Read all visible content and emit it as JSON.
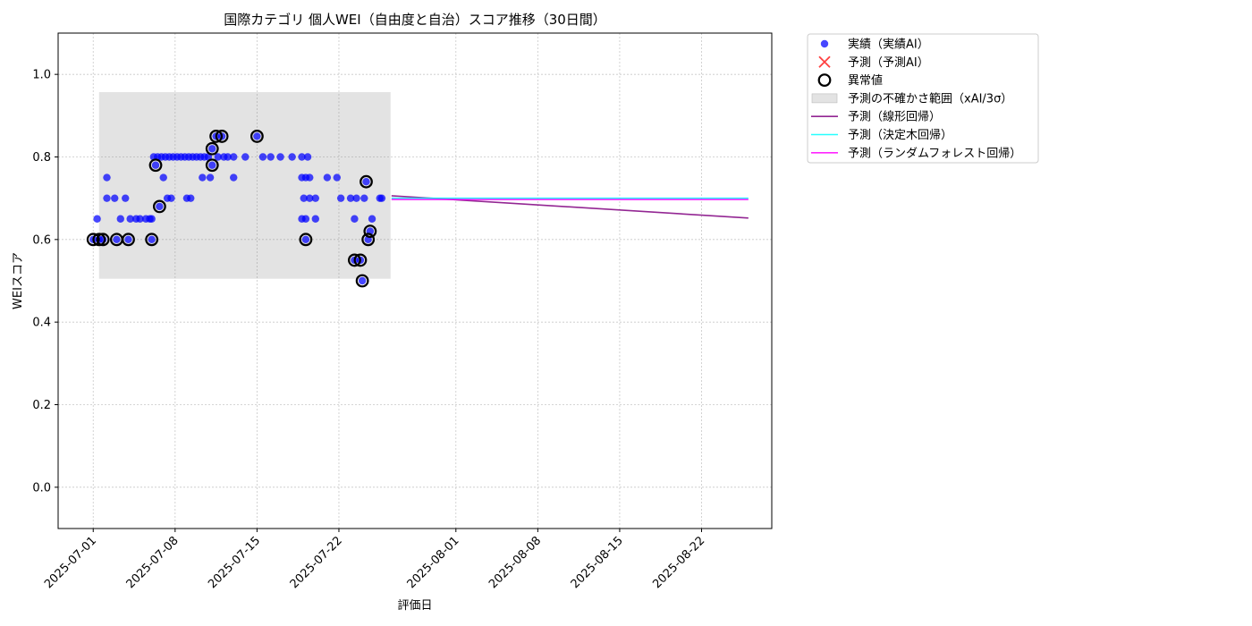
{
  "chart_data": {
    "type": "scatter",
    "title": "国際カテゴリ 個人WEI（自由度と自治）スコア推移（30日間）",
    "xlabel": "評価日",
    "ylabel": "WEIスコア",
    "xlim": [
      "2025-06-28",
      "2025-08-28"
    ],
    "ylim": [
      -0.1,
      1.1
    ],
    "x_ticks": [
      "2025-07-01",
      "2025-07-08",
      "2025-07-15",
      "2025-07-22",
      "2025-08-01",
      "2025-08-08",
      "2025-08-15",
      "2025-08-22"
    ],
    "y_ticks": [
      0.0,
      0.2,
      0.4,
      0.6,
      0.8,
      1.0
    ],
    "y_tick_labels": [
      "0.0",
      "0.2",
      "0.4",
      "0.6",
      "0.8",
      "1.0"
    ],
    "grid": true,
    "legend_position": "outside-top-right",
    "legend": [
      {
        "label": "実績（実績AI）",
        "kind": "dot",
        "color": "#0000ff"
      },
      {
        "label": "予測（予測AI）",
        "kind": "x",
        "color": "#ff0000"
      },
      {
        "label": "異常値",
        "kind": "ring",
        "color": "#000000"
      },
      {
        "label": "予測の不確かさ範囲（xAI/3σ）",
        "kind": "band",
        "color": "#d9d9d9"
      },
      {
        "label": "予測（線形回帰）",
        "kind": "line",
        "color": "#800080"
      },
      {
        "label": "予測（決定木回帰）",
        "kind": "line",
        "color": "#00ffff"
      },
      {
        "label": "予測（ランダムフォレスト回帰）",
        "kind": "line",
        "color": "#ff00ff"
      }
    ],
    "uncertainty_band": {
      "x_start": "2025-07-01T12:00",
      "x_end": "2025-07-26T10:00",
      "y_low": 0.505,
      "y_high": 0.957
    },
    "actual": [
      {
        "x": "2025-07-01T00:00",
        "y": 0.6
      },
      {
        "x": "2025-07-01T08:00",
        "y": 0.65
      },
      {
        "x": "2025-07-01T12:00",
        "y": 0.6
      },
      {
        "x": "2025-07-01T20:00",
        "y": 0.6
      },
      {
        "x": "2025-07-02T04:00",
        "y": 0.75
      },
      {
        "x": "2025-07-02T04:00",
        "y": 0.7
      },
      {
        "x": "2025-07-02T20:00",
        "y": 0.7
      },
      {
        "x": "2025-07-03T00:00",
        "y": 0.6
      },
      {
        "x": "2025-07-03T08:00",
        "y": 0.65
      },
      {
        "x": "2025-07-03T18:00",
        "y": 0.7
      },
      {
        "x": "2025-07-04T00:00",
        "y": 0.6
      },
      {
        "x": "2025-07-04T04:00",
        "y": 0.65
      },
      {
        "x": "2025-07-04T16:00",
        "y": 0.65
      },
      {
        "x": "2025-07-05T00:00",
        "y": 0.65
      },
      {
        "x": "2025-07-05T12:00",
        "y": 0.65
      },
      {
        "x": "2025-07-05T20:00",
        "y": 0.65
      },
      {
        "x": "2025-07-06T00:00",
        "y": 0.6
      },
      {
        "x": "2025-07-06T00:00",
        "y": 0.65
      },
      {
        "x": "2025-07-06T04:00",
        "y": 0.8
      },
      {
        "x": "2025-07-06T08:00",
        "y": 0.78
      },
      {
        "x": "2025-07-06T12:00",
        "y": 0.8
      },
      {
        "x": "2025-07-06T16:00",
        "y": 0.68
      },
      {
        "x": "2025-07-06T20:00",
        "y": 0.8
      },
      {
        "x": "2025-07-07T00:00",
        "y": 0.75
      },
      {
        "x": "2025-07-07T04:00",
        "y": 0.8
      },
      {
        "x": "2025-07-07T08:00",
        "y": 0.7
      },
      {
        "x": "2025-07-07T12:00",
        "y": 0.8
      },
      {
        "x": "2025-07-07T16:00",
        "y": 0.7
      },
      {
        "x": "2025-07-07T20:00",
        "y": 0.8
      },
      {
        "x": "2025-07-08T04:00",
        "y": 0.8
      },
      {
        "x": "2025-07-08T12:00",
        "y": 0.8
      },
      {
        "x": "2025-07-08T20:00",
        "y": 0.8
      },
      {
        "x": "2025-07-09T00:00",
        "y": 0.7
      },
      {
        "x": "2025-07-09T04:00",
        "y": 0.8
      },
      {
        "x": "2025-07-09T08:00",
        "y": 0.7
      },
      {
        "x": "2025-07-09T12:00",
        "y": 0.8
      },
      {
        "x": "2025-07-09T20:00",
        "y": 0.8
      },
      {
        "x": "2025-07-10T04:00",
        "y": 0.8
      },
      {
        "x": "2025-07-10T08:00",
        "y": 0.75
      },
      {
        "x": "2025-07-10T12:00",
        "y": 0.8
      },
      {
        "x": "2025-07-10T20:00",
        "y": 0.8
      },
      {
        "x": "2025-07-11T00:00",
        "y": 0.75
      },
      {
        "x": "2025-07-11T04:00",
        "y": 0.78
      },
      {
        "x": "2025-07-11T04:00",
        "y": 0.82
      },
      {
        "x": "2025-07-11T12:00",
        "y": 0.85
      },
      {
        "x": "2025-07-11T16:00",
        "y": 0.8
      },
      {
        "x": "2025-07-12T00:00",
        "y": 0.85
      },
      {
        "x": "2025-07-12T04:00",
        "y": 0.8
      },
      {
        "x": "2025-07-12T12:00",
        "y": 0.8
      },
      {
        "x": "2025-07-13T00:00",
        "y": 0.8
      },
      {
        "x": "2025-07-13T00:00",
        "y": 0.75
      },
      {
        "x": "2025-07-14T00:00",
        "y": 0.8
      },
      {
        "x": "2025-07-15T00:00",
        "y": 0.85
      },
      {
        "x": "2025-07-15T12:00",
        "y": 0.8
      },
      {
        "x": "2025-07-16T04:00",
        "y": 0.8
      },
      {
        "x": "2025-07-17T00:00",
        "y": 0.8
      },
      {
        "x": "2025-07-18T00:00",
        "y": 0.8
      },
      {
        "x": "2025-07-18T20:00",
        "y": 0.8
      },
      {
        "x": "2025-07-18T20:00",
        "y": 0.75
      },
      {
        "x": "2025-07-18T20:00",
        "y": 0.65
      },
      {
        "x": "2025-07-19T00:00",
        "y": 0.7
      },
      {
        "x": "2025-07-19T04:00",
        "y": 0.6
      },
      {
        "x": "2025-07-19T04:00",
        "y": 0.65
      },
      {
        "x": "2025-07-19T04:00",
        "y": 0.75
      },
      {
        "x": "2025-07-19T08:00",
        "y": 0.8
      },
      {
        "x": "2025-07-19T12:00",
        "y": 0.7
      },
      {
        "x": "2025-07-19T12:00",
        "y": 0.75
      },
      {
        "x": "2025-07-20T00:00",
        "y": 0.7
      },
      {
        "x": "2025-07-20T00:00",
        "y": 0.65
      },
      {
        "x": "2025-07-21T00:00",
        "y": 0.75
      },
      {
        "x": "2025-07-21T20:00",
        "y": 0.75
      },
      {
        "x": "2025-07-22T04:00",
        "y": 0.7
      },
      {
        "x": "2025-07-23T00:00",
        "y": 0.7
      },
      {
        "x": "2025-07-23T08:00",
        "y": 0.55
      },
      {
        "x": "2025-07-23T08:00",
        "y": 0.65
      },
      {
        "x": "2025-07-23T12:00",
        "y": 0.7
      },
      {
        "x": "2025-07-23T20:00",
        "y": 0.55
      },
      {
        "x": "2025-07-24T00:00",
        "y": 0.5
      },
      {
        "x": "2025-07-24T04:00",
        "y": 0.7
      },
      {
        "x": "2025-07-24T08:00",
        "y": 0.74
      },
      {
        "x": "2025-07-24T12:00",
        "y": 0.6
      },
      {
        "x": "2025-07-24T16:00",
        "y": 0.62
      },
      {
        "x": "2025-07-24T20:00",
        "y": 0.65
      },
      {
        "x": "2025-07-25T12:00",
        "y": 0.7
      },
      {
        "x": "2025-07-25T16:00",
        "y": 0.7
      }
    ],
    "anomalies": [
      {
        "x": "2025-07-01T00:00",
        "y": 0.6
      },
      {
        "x": "2025-07-01T12:00",
        "y": 0.6
      },
      {
        "x": "2025-07-01T20:00",
        "y": 0.6
      },
      {
        "x": "2025-07-03T00:00",
        "y": 0.6
      },
      {
        "x": "2025-07-04T00:00",
        "y": 0.6
      },
      {
        "x": "2025-07-06T00:00",
        "y": 0.6
      },
      {
        "x": "2025-07-06T08:00",
        "y": 0.78
      },
      {
        "x": "2025-07-06T16:00",
        "y": 0.68
      },
      {
        "x": "2025-07-11T04:00",
        "y": 0.78
      },
      {
        "x": "2025-07-11T04:00",
        "y": 0.82
      },
      {
        "x": "2025-07-11T12:00",
        "y": 0.85
      },
      {
        "x": "2025-07-12T00:00",
        "y": 0.85
      },
      {
        "x": "2025-07-15T00:00",
        "y": 0.85
      },
      {
        "x": "2025-07-19T04:00",
        "y": 0.6
      },
      {
        "x": "2025-07-23T08:00",
        "y": 0.55
      },
      {
        "x": "2025-07-23T20:00",
        "y": 0.55
      },
      {
        "x": "2025-07-24T00:00",
        "y": 0.5
      },
      {
        "x": "2025-07-24T08:00",
        "y": 0.74
      },
      {
        "x": "2025-07-24T12:00",
        "y": 0.6
      },
      {
        "x": "2025-07-24T16:00",
        "y": 0.62
      }
    ],
    "forecast_lines": [
      {
        "name": "予測（線形回帰）",
        "color": "#800080",
        "points": [
          {
            "x": "2025-07-26T12:00",
            "y": 0.706
          },
          {
            "x": "2025-08-26T00:00",
            "y": 0.652
          }
        ]
      },
      {
        "name": "予測（決定木回帰）",
        "color": "#00ffff",
        "points": [
          {
            "x": "2025-07-26T12:00",
            "y": 0.7
          },
          {
            "x": "2025-08-26T00:00",
            "y": 0.7
          }
        ]
      },
      {
        "name": "予測（ランダムフォレスト回帰）",
        "color": "#ff00ff",
        "points": [
          {
            "x": "2025-07-26T12:00",
            "y": 0.697
          },
          {
            "x": "2025-08-26T00:00",
            "y": 0.697
          }
        ]
      }
    ]
  }
}
